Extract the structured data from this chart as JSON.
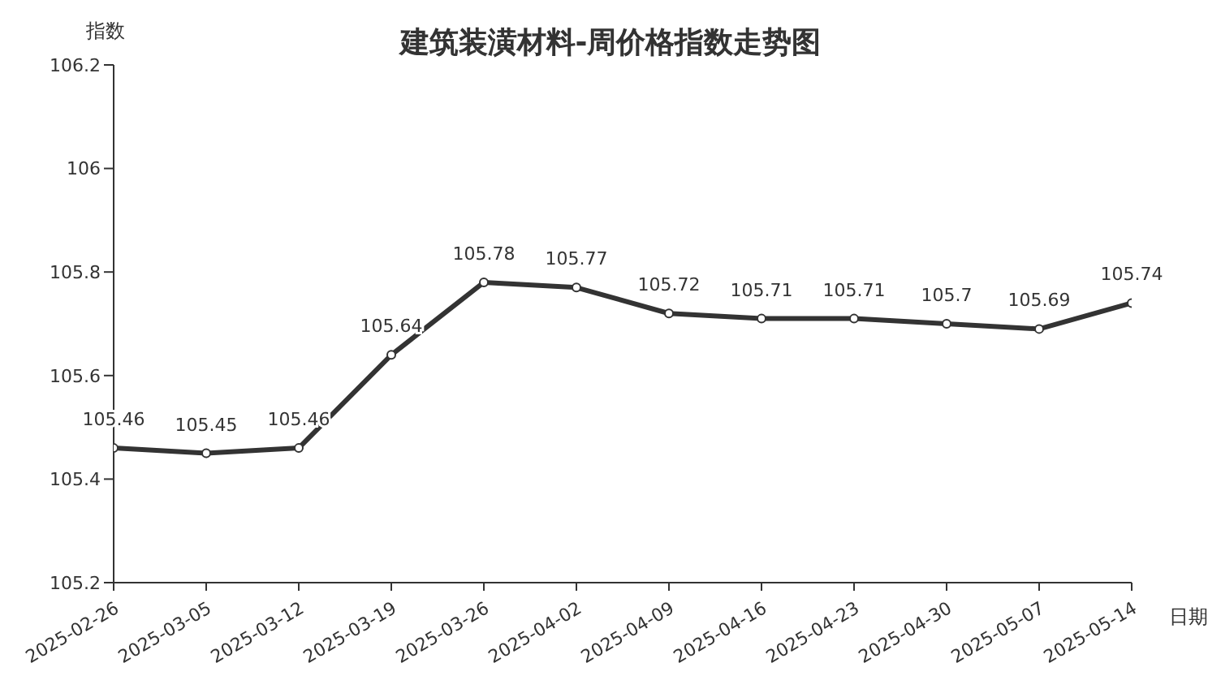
{
  "chart_data": {
    "type": "line",
    "title": "建筑装潢材料-周价格指数走势图",
    "xlabel": "日期",
    "ylabel": "指数",
    "categories": [
      "2025-02-26",
      "2025-03-05",
      "2025-03-12",
      "2025-03-19",
      "2025-03-26",
      "2025-04-02",
      "2025-04-09",
      "2025-04-16",
      "2025-04-23",
      "2025-04-30",
      "2025-05-07",
      "2025-05-14"
    ],
    "series": [
      {
        "color": "#333333",
        "values": [
          105.46,
          105.45,
          105.46,
          105.64,
          105.78,
          105.77,
          105.72,
          105.71,
          105.71,
          105.7,
          105.69,
          105.74
        ]
      }
    ],
    "ylim": [
      105.2,
      106.2
    ],
    "yticks": [
      105.2,
      105.4,
      105.6,
      105.8,
      106,
      106.2
    ],
    "grid": false,
    "legend": false,
    "marker": "circle",
    "line_style": "solid",
    "data_labels": true
  }
}
